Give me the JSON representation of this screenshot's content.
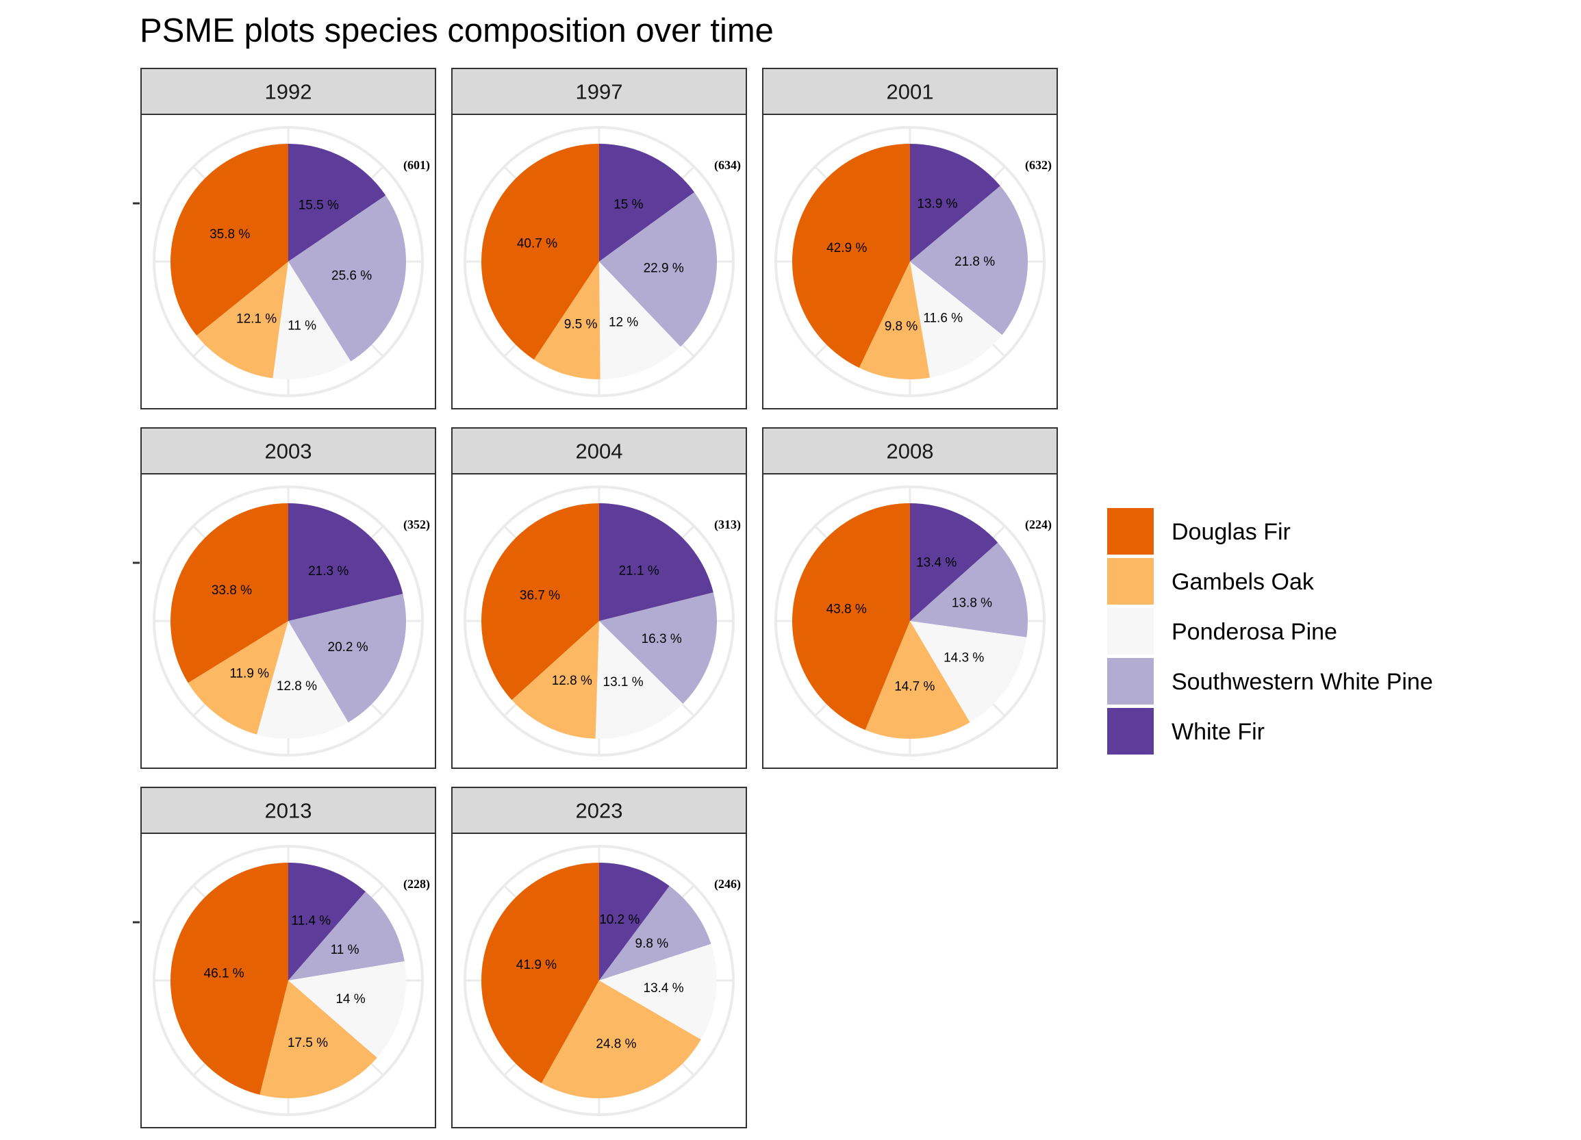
{
  "chart_data": {
    "type": "pie",
    "title": "PSME plots species composition over time",
    "legend": {
      "placement": "right",
      "entries": [
        {
          "name": "Douglas Fir",
          "color": "#e66101"
        },
        {
          "name": "Gambels Oak",
          "color": "#fdb863"
        },
        {
          "name": "Ponderosa Pine",
          "color": "#f7f7f7"
        },
        {
          "name": "Southwestern White Pine",
          "color": "#b2abd2"
        },
        {
          "name": "White Fir",
          "color": "#5e3c99"
        }
      ]
    },
    "panels": [
      {
        "year": "1992",
        "count": "(601)",
        "values": [
          35.8,
          12.1,
          11,
          25.6,
          15.5
        ],
        "labels": [
          "35.8 %",
          "12.1 %",
          "11 %",
          "25.6 %",
          "15.5 %"
        ]
      },
      {
        "year": "1997",
        "count": "(634)",
        "values": [
          40.7,
          9.5,
          12,
          22.9,
          15
        ],
        "labels": [
          "40.7 %",
          "9.5 %",
          "12 %",
          "22.9 %",
          "15 %"
        ]
      },
      {
        "year": "2001",
        "count": "(632)",
        "values": [
          42.9,
          9.8,
          11.6,
          21.8,
          13.9
        ],
        "labels": [
          "42.9 %",
          "9.8 %",
          "11.6 %",
          "21.8 %",
          "13.9 %"
        ]
      },
      {
        "year": "2003",
        "count": "(352)",
        "values": [
          33.8,
          11.9,
          12.8,
          20.2,
          21.3
        ],
        "labels": [
          "33.8 %",
          "11.9 %",
          "12.8 %",
          "20.2 %",
          "21.3 %"
        ]
      },
      {
        "year": "2004",
        "count": "(313)",
        "values": [
          36.7,
          12.8,
          13.1,
          16.3,
          21.1
        ],
        "labels": [
          "36.7 %",
          "12.8 %",
          "13.1 %",
          "16.3 %",
          "21.1 %"
        ]
      },
      {
        "year": "2008",
        "count": "(224)",
        "values": [
          43.8,
          14.7,
          14.3,
          13.8,
          13.4
        ],
        "labels": [
          "43.8 %",
          "14.7 %",
          "14.3 %",
          "13.8 %",
          "13.4 %"
        ]
      },
      {
        "year": "2013",
        "count": "(228)",
        "values": [
          46.1,
          17.5,
          14,
          11,
          11.4
        ],
        "labels": [
          "46.1 %",
          "17.5 %",
          "14 %",
          "11 %",
          "11.4 %"
        ]
      },
      {
        "year": "2023",
        "count": "(246)",
        "values": [
          41.9,
          24.8,
          13.4,
          9.8,
          10.2
        ],
        "labels": [
          "41.9 %",
          "24.8 %",
          "13.4 %",
          "9.8 %",
          "10.2 %"
        ]
      }
    ]
  }
}
